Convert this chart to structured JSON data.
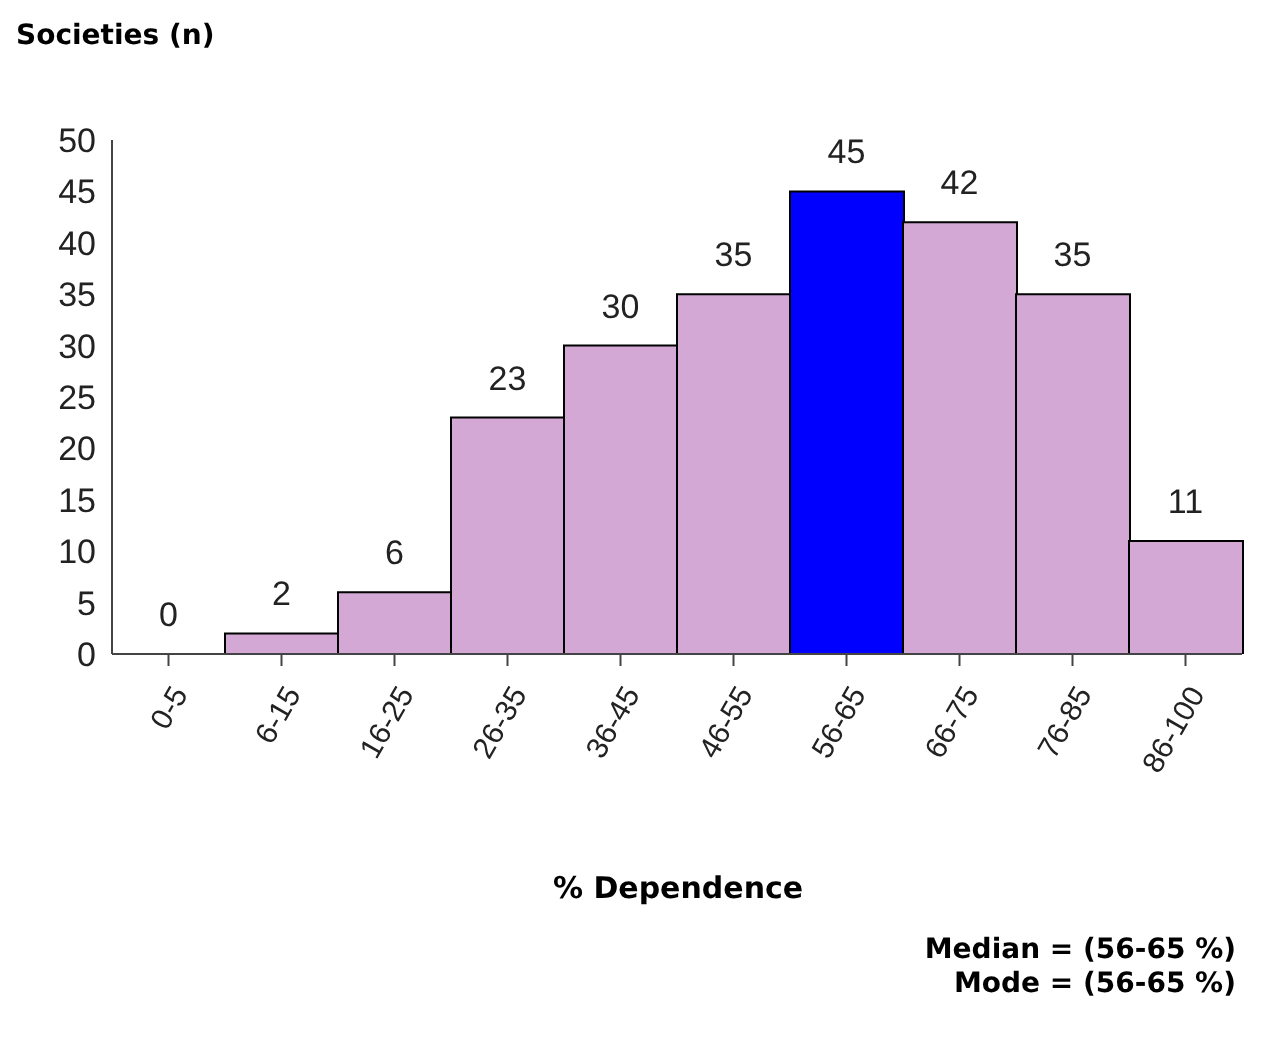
{
  "chart_data": {
    "type": "bar",
    "ylabel": "Societies (n)",
    "xlabel": "% Dependence",
    "categories": [
      "0-5",
      "6-15",
      "16-25",
      "26-35",
      "36-45",
      "46-55",
      "56-65",
      "66-75",
      "76-85",
      "86-100"
    ],
    "values": [
      0,
      2,
      6,
      23,
      30,
      35,
      45,
      42,
      35,
      11
    ],
    "colors": [
      "#d4a8d4",
      "#d4a8d4",
      "#d4a8d4",
      "#d4a8d4",
      "#d4a8d4",
      "#d4a8d4",
      "#0000ff",
      "#d4a8d4",
      "#d4a8d4",
      "#d4a8d4"
    ],
    "ylim": [
      0,
      50
    ],
    "yticks": [
      0,
      5,
      10,
      15,
      20,
      25,
      30,
      35,
      40,
      45,
      50
    ],
    "data_labels": true,
    "grid": false,
    "legend": false,
    "annotations": [
      "Median = (56-65 %)",
      "Mode = (56-65 %)"
    ]
  }
}
